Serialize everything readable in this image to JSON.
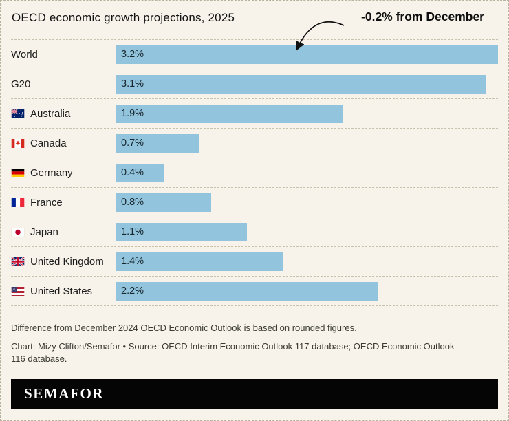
{
  "chart_data": {
    "type": "bar",
    "orientation": "horizontal",
    "title": "OECD economic growth projections, 2025",
    "annotation": {
      "text": "-0.2% from December",
      "points_to": "World"
    },
    "categories": [
      "World",
      "G20",
      "Australia",
      "Canada",
      "Germany",
      "France",
      "Japan",
      "United Kingdom",
      "United States"
    ],
    "values": [
      3.2,
      3.1,
      1.9,
      0.7,
      0.4,
      0.8,
      1.1,
      1.4,
      2.2
    ],
    "value_labels": [
      "3.2%",
      "3.1%",
      "1.9%",
      "0.7%",
      "0.4%",
      "0.8%",
      "1.1%",
      "1.4%",
      "2.2%"
    ],
    "flags": [
      null,
      null,
      "australia",
      "canada",
      "germany",
      "france",
      "japan",
      "united-kingdom",
      "united-states"
    ],
    "xlim": [
      0,
      3.2
    ],
    "grid": false,
    "legend": "none",
    "bar_color": "#92c5dd",
    "background": "#f7f3ea"
  },
  "notes": {
    "line1": "Difference from December 2024 OECD Economic Outlook is based on rounded figures.",
    "credit": "Chart: Mizy Clifton/Semafor • Source: OECD Interim Economic Outlook 117 database; OECD Economic Outlook 116 database."
  },
  "footer": {
    "logo": "SEMAFOR",
    "bar_color": "#050505",
    "logo_color": "#ffffff"
  }
}
